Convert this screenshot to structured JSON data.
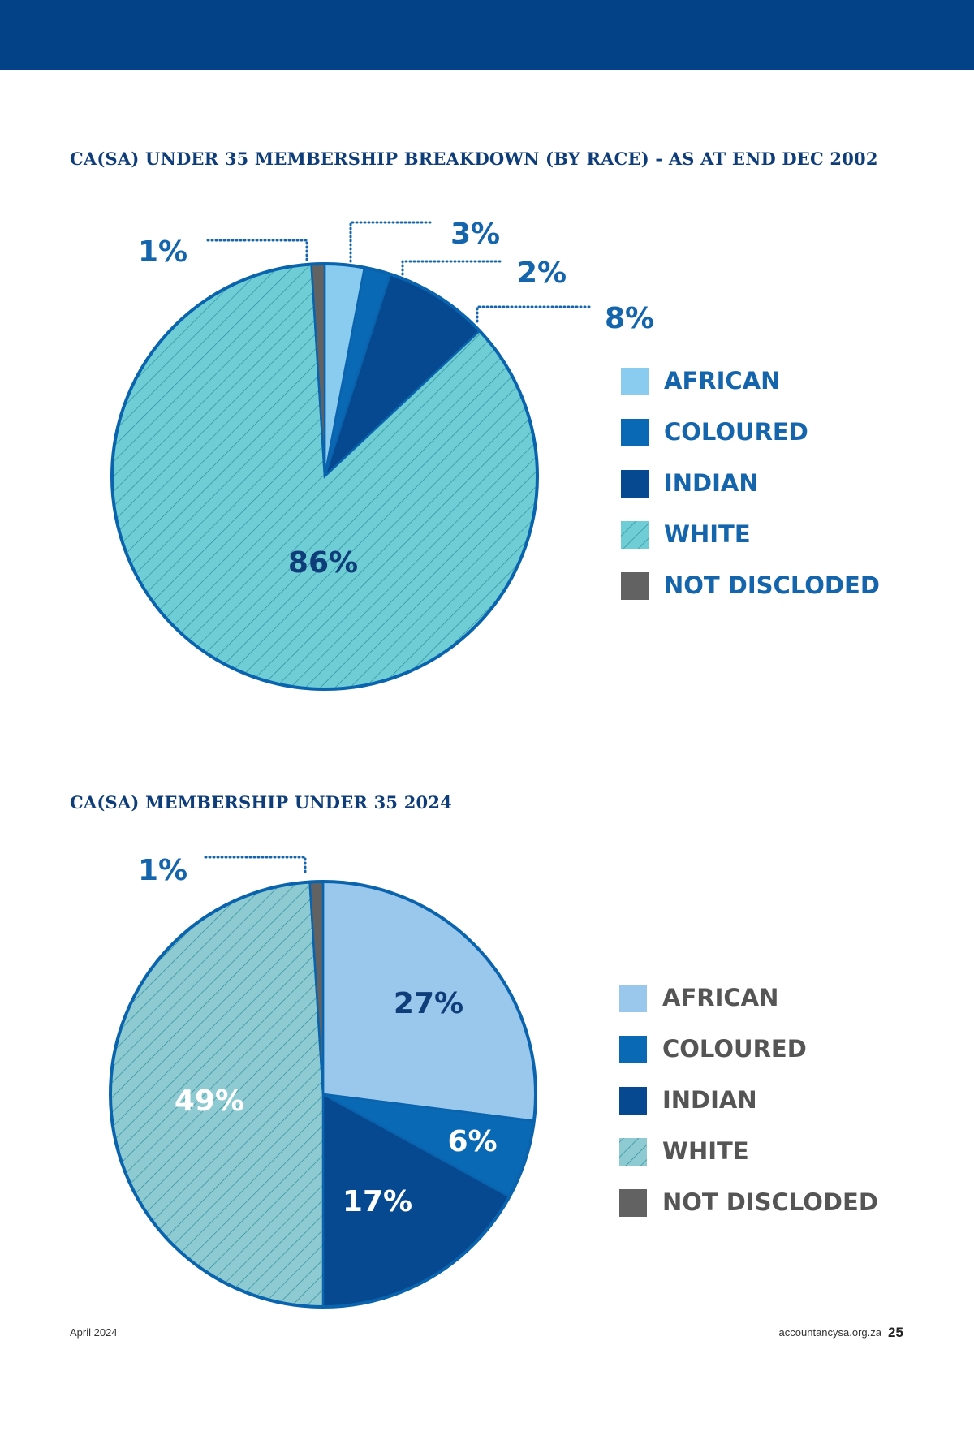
{
  "footer": {
    "date": "April  2024",
    "site": "accountancysa.org.za",
    "page": "25"
  },
  "chart_data": [
    {
      "type": "pie",
      "title": "CA(SA) UNDER 35 MEMBERSHIP BREAKDOWN (BY RACE) - AS AT END DEC 2002",
      "categories": [
        "AFRICAN",
        "COLOURED",
        "INDIAN",
        "WHITE",
        "NOT DISCLODED"
      ],
      "values": [
        3,
        2,
        8,
        86,
        1
      ],
      "labels": [
        "3%",
        "2%",
        "8%",
        "86%",
        "1%"
      ],
      "colors": [
        "#8acbf0",
        "#0a69b5",
        "#064991",
        "#6fcdd6",
        "#626262"
      ],
      "hatched": [
        false,
        false,
        false,
        true,
        false
      ],
      "legend": "right",
      "legend_text_color": "#1565ad"
    },
    {
      "type": "pie",
      "title": "CA(SA) MEMBERSHIP UNDER 35 2024",
      "categories": [
        "AFRICAN",
        "COLOURED",
        "INDIAN",
        "WHITE",
        "NOT DISCLODED"
      ],
      "values": [
        27,
        6,
        17,
        49,
        1
      ],
      "labels": [
        "27%",
        "6%",
        "17%",
        "49%",
        "1%"
      ],
      "colors": [
        "#9ac7ec",
        "#0a69b5",
        "#064991",
        "#8ecad1",
        "#626262"
      ],
      "hatched": [
        false,
        false,
        false,
        true,
        false
      ],
      "legend": "right",
      "legend_text_color": "#555555"
    }
  ]
}
